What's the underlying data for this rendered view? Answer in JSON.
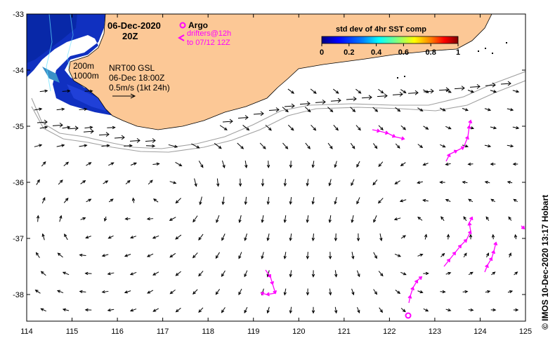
{
  "map": {
    "date_line": "06-Dec-2020",
    "time_line": "20Z",
    "legend": {
      "argo_label": "Argo",
      "drifters_line1": "drifters@12h",
      "drifters_line2": "to 07/12 12Z"
    },
    "isobaths": {
      "label_200": "200m",
      "label_1000": "1000m"
    },
    "product": {
      "line1": "NRT00 GSL",
      "line2": "06-Dec 18:00Z",
      "line3": "0.5m/s (1kt 24h)"
    },
    "colorbar": {
      "title": "std dev of 4hr SST comp",
      "ticks": [
        "0",
        "0.2",
        "0.4",
        "0.6",
        "0.8",
        "1"
      ],
      "colors": [
        "#00007f",
        "#0000ff",
        "#0080ff",
        "#00ffff",
        "#80ff80",
        "#ffff00",
        "#ff8000",
        "#ff0000",
        "#7f0000"
      ]
    },
    "axes": {
      "x_ticks": [
        "114",
        "115",
        "116",
        "117",
        "118",
        "119",
        "120",
        "121",
        "122",
        "123",
        "124",
        "125"
      ],
      "y_ticks": [
        "-33",
        "-34",
        "-35",
        "-36",
        "-37",
        "-38"
      ],
      "lon_range": [
        114,
        125
      ],
      "lat_range": [
        -38.5,
        -33
      ]
    },
    "credit": "© IMOS 10-Dec-2020 13:17 Hobart",
    "colors": {
      "land": "#fcc896",
      "current_arrow": "#000000",
      "drifter": "#ff00ff",
      "isobath": "#a0a0a0",
      "sst_patch": "#1030c0"
    },
    "icons": {
      "argo_marker": "argo-float-icon",
      "drifter_marker": "drifter-chevron-icon"
    }
  }
}
